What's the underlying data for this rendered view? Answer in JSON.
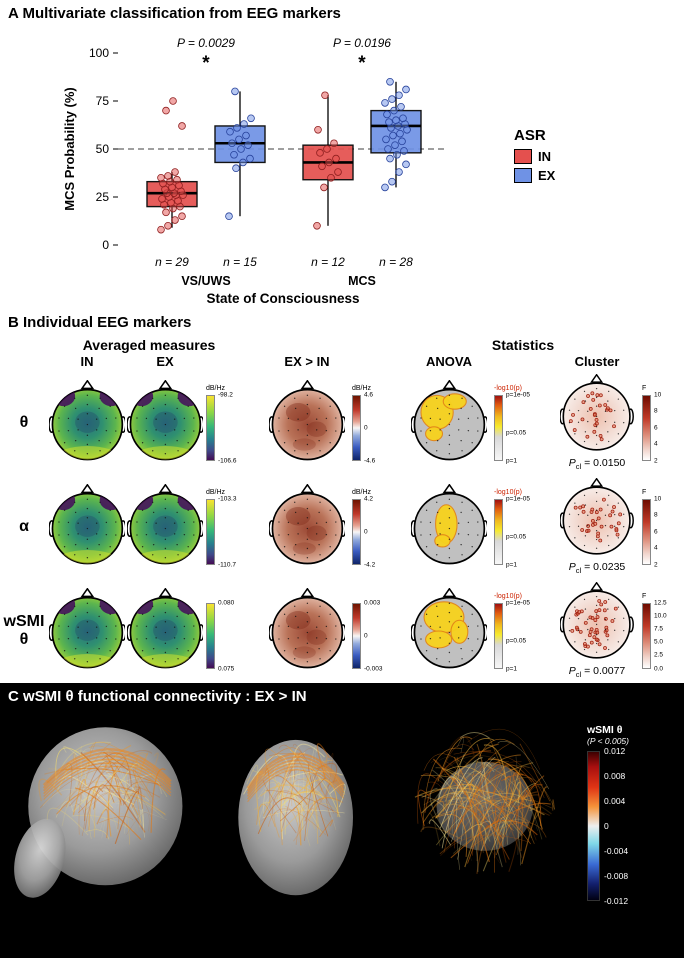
{
  "panel_a": {
    "title": "A Multivariate classification from EEG markers",
    "legend": {
      "title": "ASR",
      "items": [
        {
          "label": "IN",
          "color": "#e4504e"
        },
        {
          "label": "EX",
          "color": "#6f92e5"
        }
      ]
    }
  },
  "chart_data": {
    "type": "boxplot",
    "title": "Multivariate classification from EEG markers",
    "xlabel": "State of Consciousness",
    "ylabel": "MCS Probability (%)",
    "ylim": [
      0,
      100
    ],
    "yticks": [
      0,
      25,
      50,
      75,
      100
    ],
    "reference_line": 50,
    "categories": [
      "VS/UWS",
      "MCS"
    ],
    "annotations": [
      {
        "group": "VS/UWS",
        "p": "P = 0.0029",
        "sig": "*"
      },
      {
        "group": "MCS",
        "p": "P = 0.0196",
        "sig": "*"
      }
    ],
    "series": [
      {
        "name": "IN",
        "color": "#e4504e",
        "stroke": "#8f1f1f",
        "boxes": [
          {
            "group": "VS/UWS",
            "n_label": "n = 29",
            "whisker_low": 9,
            "q1": 20,
            "median": 27,
            "q3": 33,
            "whisker_high": 38,
            "points": [
              8,
              10,
              13,
              15,
              17,
              19,
              20,
              21,
              22,
              23,
              24,
              25,
              26,
              26,
              27,
              27,
              28,
              29,
              30,
              31,
              32,
              33,
              34,
              35,
              36,
              38,
              62,
              70,
              75
            ]
          },
          {
            "group": "MCS",
            "n_label": "n = 12",
            "whisker_low": 10,
            "q1": 34,
            "median": 43,
            "q3": 52,
            "whisker_high": 78,
            "points": [
              10,
              30,
              35,
              38,
              41,
              43,
              45,
              48,
              50,
              53,
              60,
              78
            ]
          }
        ]
      },
      {
        "name": "EX",
        "color": "#6f92e5",
        "stroke": "#27429b",
        "boxes": [
          {
            "group": "VS/UWS",
            "n_label": "n = 15",
            "whisker_low": 15,
            "q1": 43,
            "median": 53,
            "q3": 62,
            "whisker_high": 80,
            "points": [
              15,
              40,
              43,
              45,
              47,
              50,
              52,
              53,
              55,
              57,
              59,
              61,
              63,
              66,
              80
            ]
          },
          {
            "group": "MCS",
            "n_label": "n = 28",
            "whisker_low": 30,
            "q1": 48,
            "median": 62,
            "q3": 70,
            "whisker_high": 85,
            "points": [
              30,
              33,
              38,
              42,
              45,
              47,
              49,
              50,
              52,
              54,
              55,
              57,
              58,
              60,
              61,
              62,
              63,
              64,
              65,
              66,
              68,
              70,
              72,
              74,
              76,
              78,
              81,
              85
            ]
          }
        ]
      }
    ]
  },
  "panel_b": {
    "title": "B Individual EEG markers",
    "group_headers": {
      "averaged": "Averaged measures",
      "statistics": "Statistics"
    },
    "column_headers": [
      "IN",
      "EX",
      "EX > IN",
      "ANOVA",
      "Cluster"
    ],
    "rows": [
      {
        "label": "θ",
        "avg_bar": {
          "unit": "dB/Hz",
          "top": "-98.2",
          "bottom": "-106.6"
        },
        "diff_bar": {
          "unit": "dB/Hz",
          "top": "4.6",
          "mid": "0",
          "bottom": "-4.6"
        },
        "anova_bar": {
          "unit": "-log10(p)",
          "top": "p=1e-05",
          "mid": "p=0.05",
          "bottom": "p=1"
        },
        "cluster_bar": {
          "unit": "F",
          "ticks": [
            "10",
            "8",
            "6",
            "4",
            "2"
          ]
        },
        "p_cluster": {
          "base": "P",
          "sub": "cl",
          "rest": " = 0.0150"
        }
      },
      {
        "label": "α",
        "avg_bar": {
          "unit": "dB/Hz",
          "top": "-103.3",
          "bottom": "-110.7"
        },
        "diff_bar": {
          "unit": "dB/Hz",
          "top": "4.2",
          "mid": "0",
          "bottom": "-4.2"
        },
        "anova_bar": {
          "unit": "-log10(p)",
          "top": "p=1e-05",
          "mid": "p=0.05",
          "bottom": "p=1"
        },
        "cluster_bar": {
          "unit": "F",
          "ticks": [
            "10",
            "8",
            "6",
            "4",
            "2"
          ]
        },
        "p_cluster": {
          "base": "P",
          "sub": "cl",
          "rest": " = 0.0235"
        }
      },
      {
        "label": "wSMI θ",
        "avg_bar": {
          "unit": "",
          "top": "0.080",
          "bottom": "0.075"
        },
        "diff_bar": {
          "unit": "",
          "top": "0.003",
          "mid": "0",
          "bottom": "-0.003"
        },
        "anova_bar": {
          "unit": "-log10(p)",
          "top": "p=1e-05",
          "mid": "p=0.05",
          "bottom": "p=1"
        },
        "cluster_bar": {
          "unit": "F",
          "ticks": [
            "12.5",
            "10.0",
            "7.5",
            "5.0",
            "2.5",
            "0.0"
          ]
        },
        "p_cluster": {
          "base": "P",
          "sub": "cl",
          "rest": " = 0.0077"
        }
      }
    ]
  },
  "panel_c": {
    "title": "C wSMI θ functional connectivity : EX > IN",
    "colorbar": {
      "title": "wSMI θ",
      "subtitle": "(P < 0.005)",
      "ticks": [
        "0.012",
        "0.008",
        "0.004",
        "0",
        "-0.004",
        "-0.008",
        "-0.012"
      ]
    }
  }
}
